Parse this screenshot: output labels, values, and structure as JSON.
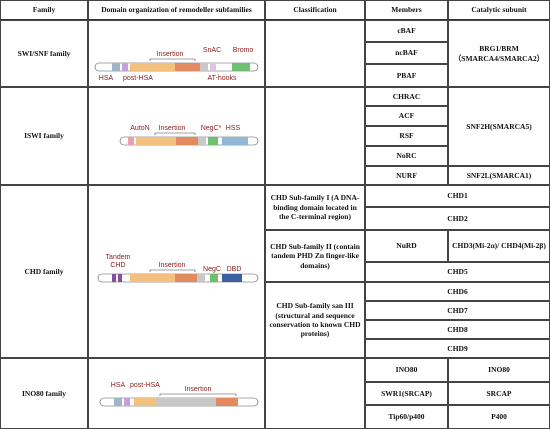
{
  "columns": [
    "Family",
    "Domain organization of remodeller subfamilies",
    "Classification",
    "Members",
    "Catalytic subunit"
  ],
  "rows": [
    {
      "family": "SWI/SNF family",
      "domains": [
        "Insertion",
        "SnAC",
        "Bromo",
        "HSA",
        "post-HSA",
        "AT-hooks"
      ],
      "members": [
        "cBAF",
        "ncBAF",
        "PBAF"
      ],
      "catalytic": [
        "BRG1/BRM",
        "（SMARCA4/SMARCA2）"
      ]
    },
    {
      "family": "ISWI family",
      "domains": [
        "AutoN",
        "Insertion",
        "NegC*",
        "HSS"
      ],
      "members": [
        "CHRAC",
        "ACF",
        "RSF",
        "NoRC",
        "NURF"
      ],
      "catalytic": [
        "SNF2H(SMARCA5)",
        "SNF2L(SMARCA1)"
      ]
    },
    {
      "family": "CHD family",
      "domains": [
        "Tandem",
        "CHD",
        "Insertion",
        "NegC",
        "DBD"
      ],
      "classification": [
        "CHD Sub-family I (A DNA-binding domain located in the C-terminal region)",
        "CHD Sub-family II (contain tandem PHD Zn finger-like domains)",
        "CHD Sub-family san III (structural and sequence conservation to known CHD proteins)"
      ],
      "members": [
        "CHD1",
        "CHD2",
        "NuRD",
        "CHD5",
        "CHD6",
        "CHD7",
        "CHD8",
        "CHD9"
      ],
      "catalytic": [
        "CHD3(Mi-2α)/ CHD4(Mi-2β)"
      ]
    },
    {
      "family": "INO80 family",
      "domains": [
        "HSA",
        "post-HSA",
        "Insertion"
      ],
      "members": [
        "INO80",
        "SWR1(SRCAP)",
        "Tip60/p400"
      ],
      "catalytic": [
        "INO80",
        "SRCAP",
        "P400"
      ]
    }
  ]
}
